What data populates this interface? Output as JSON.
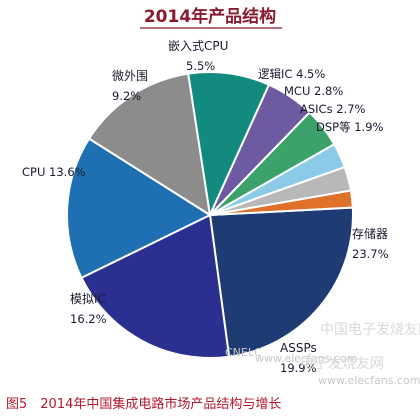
{
  "chart_data": {
    "type": "pie",
    "title": "2014年产品结构",
    "slices": [
      {
        "label": "存储器",
        "value": 23.7,
        "display": "23.7%",
        "color": "#1f3b73"
      },
      {
        "label": "ASSPs",
        "value": 19.9,
        "display": "19.9%",
        "color": "#2b2f8f"
      },
      {
        "label": "模拟IC",
        "value": 16.2,
        "display": "16.2%",
        "color": "#1f6fb3"
      },
      {
        "label": "CPU",
        "value": 13.6,
        "display": "13.6%",
        "color": "#8c8c8c"
      },
      {
        "label": "微外围",
        "value": 9.2,
        "display": "9.2%",
        "color": "#138a7e"
      },
      {
        "label": "嵌入式CPU",
        "value": 5.5,
        "display": "5.5%",
        "color": "#6e5aa0"
      },
      {
        "label": "逻辑IC",
        "value": 4.5,
        "display": "4.5%",
        "color": "#3aa26a"
      },
      {
        "label": "MCU",
        "value": 2.8,
        "display": "2.8%",
        "color": "#8ccbe8"
      },
      {
        "label": "ASICs",
        "value": 2.7,
        "display": "2.7%",
        "color": "#b8b8b8"
      },
      {
        "label": "DSP等",
        "value": 1.9,
        "display": "1.9%",
        "color": "#e0712b"
      }
    ]
  },
  "caption": "图5　2014年中国集成电路市场产品结构与增长",
  "watermarks": {
    "logo": "CNELC",
    "site_url": "www.elecfans.com",
    "site_cn": "中国电子发烧友网",
    "site_cn2": "电子发烧友网",
    "site_url2": "www.elecfans.com"
  }
}
